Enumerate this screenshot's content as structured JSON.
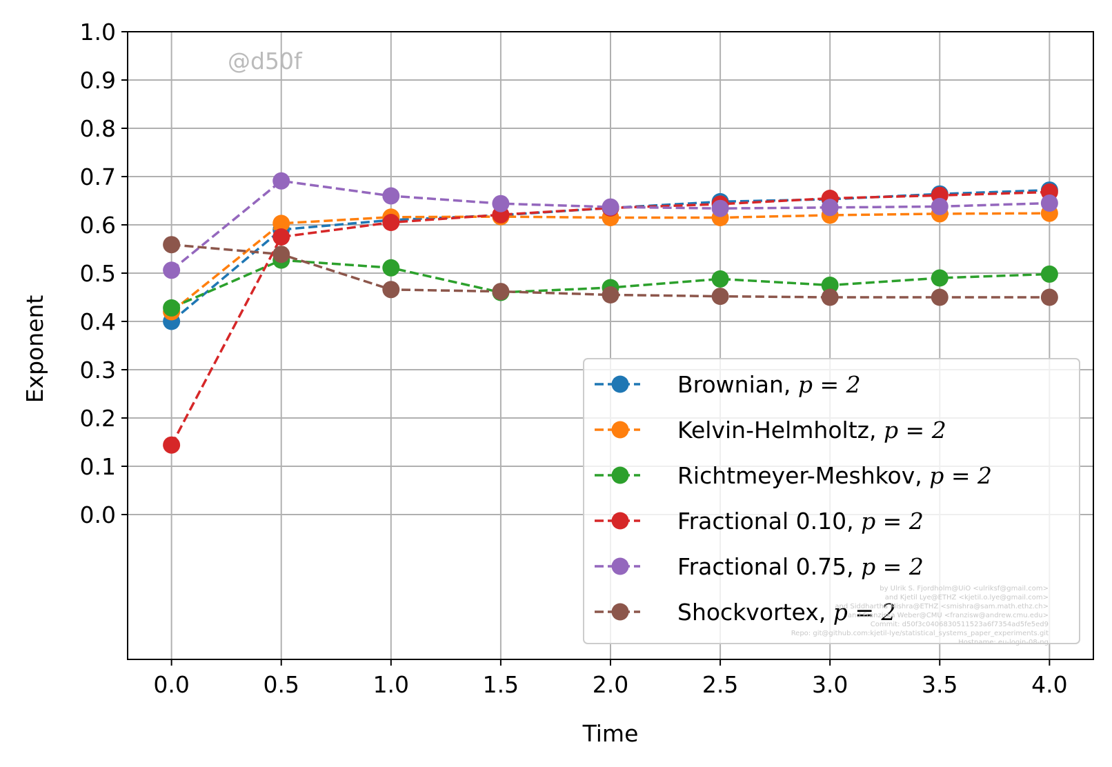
{
  "watermark": "@d50f",
  "credits": [
    "by Ulrik S. Fjordholm@UiO <ulriksf@gmail.com>",
    "and Kjetil Lye@ETHZ <kjetil.o.lye@gmail.com>",
    "and Siddhartha Mishra@ETHZ <smishra@sam.math.ethz.ch>",
    "and Franziska Weber@CMU <franzisw@andrew.cmu.edu>",
    "Commit: d50f3c0406830511523a6f7354ad5fe5ed9",
    "Repo: git@github.com:kjetil-lye/statistical_systems_paper_experiments.git",
    "Hostname: eu-login-08-ng"
  ],
  "chart_data": {
    "type": "line",
    "title": "",
    "xlabel": "Time",
    "ylabel": "Exponent",
    "xlim": [
      -0.2,
      4.2
    ],
    "ylim": [
      -0.3,
      1.0
    ],
    "x_ticks": [
      "0.0",
      "0.5",
      "1.0",
      "1.5",
      "2.0",
      "2.5",
      "3.0",
      "3.5",
      "4.0"
    ],
    "x_tick_values": [
      0.0,
      0.5,
      1.0,
      1.5,
      2.0,
      2.5,
      3.0,
      3.5,
      4.0
    ],
    "y_ticks": [
      "0.0",
      "0.1",
      "0.2",
      "0.3",
      "0.4",
      "0.5",
      "0.6",
      "0.7",
      "0.8",
      "0.9",
      "1.0"
    ],
    "y_tick_values": [
      0.0,
      0.1,
      0.2,
      0.3,
      0.4,
      0.5,
      0.6,
      0.7,
      0.8,
      0.9,
      1.0
    ],
    "grid": true,
    "legend_position": "lower-right",
    "line_style": "dashed",
    "marker": "circle",
    "x": [
      0.0,
      0.5,
      1.0,
      1.5,
      2.0,
      2.5,
      3.0,
      3.5,
      4.0
    ],
    "series": [
      {
        "name": "Brownian",
        "p": "p = 2",
        "color": "#1f77b4",
        "values": [
          0.4,
          0.59,
          0.61,
          0.62,
          0.635,
          0.648,
          0.653,
          0.664,
          0.672
        ]
      },
      {
        "name": "Kelvin-Helmholtz",
        "p": "p = 2",
        "color": "#ff7f0e",
        "values": [
          0.42,
          0.603,
          0.616,
          0.617,
          0.615,
          0.615,
          0.62,
          0.623,
          0.624
        ]
      },
      {
        "name": "Richtmeyer-Meshkov",
        "p": "p = 2",
        "color": "#2ca02c",
        "values": [
          0.428,
          0.527,
          0.511,
          0.46,
          0.47,
          0.488,
          0.475,
          0.49,
          0.498
        ]
      },
      {
        "name": "Fractional 0.10",
        "p": "p = 2",
        "color": "#d62728",
        "values": [
          0.144,
          0.575,
          0.605,
          0.621,
          0.635,
          0.643,
          0.655,
          0.661,
          0.668
        ]
      },
      {
        "name": "Fractional 0.75",
        "p": "p = 2",
        "color": "#9467bd",
        "values": [
          0.506,
          0.691,
          0.66,
          0.644,
          0.637,
          0.634,
          0.636,
          0.638,
          0.645
        ]
      },
      {
        "name": "Shockvortex",
        "p": "p = 2",
        "color": "#8c564b",
        "values": [
          0.559,
          0.539,
          0.466,
          0.462,
          0.455,
          0.452,
          0.45,
          0.45,
          0.45
        ]
      }
    ]
  }
}
